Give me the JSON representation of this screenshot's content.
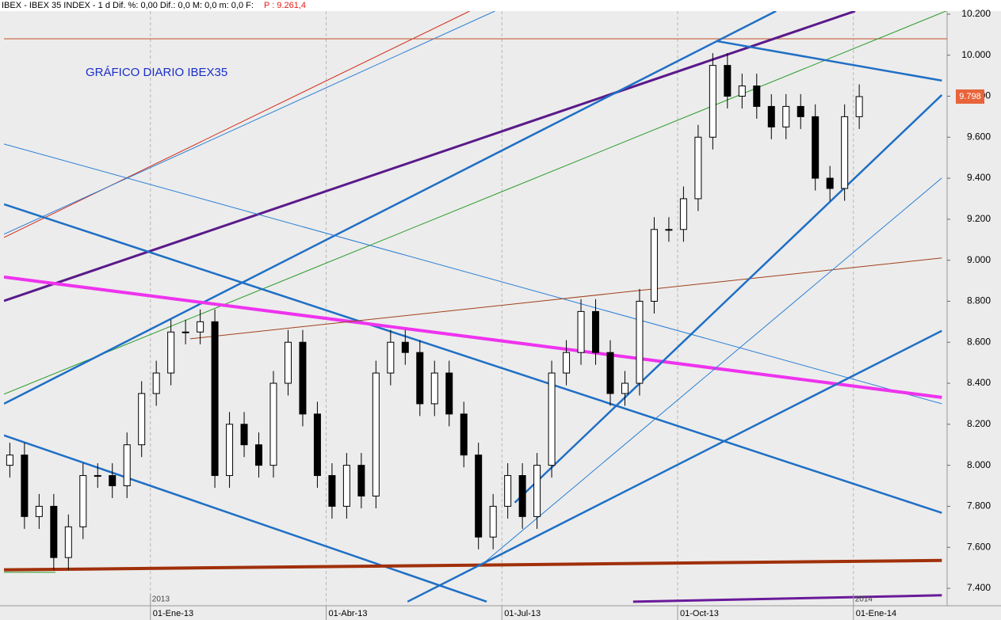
{
  "header": {
    "text": "IBEX - IBEX 35 INDEX - 1 d Dif. %: 0,00 Dif.: 0,0 M: 0,0 m: 0,0 F:",
    "price": "P : 9.261,4"
  },
  "chart_data": {
    "type": "candlestick",
    "title": "GRÁFICO DIARIO IBEX35",
    "xlim": [
      -2.5,
      13.6
    ],
    "ylim": [
      7315,
      10215
    ],
    "xticks": [
      {
        "value": 0,
        "label": "01-Ene-13"
      },
      {
        "value": 3,
        "label": "01-Abr-13"
      },
      {
        "value": 6,
        "label": "01-Jul-13"
      },
      {
        "value": 9,
        "label": "01-Oct-13"
      },
      {
        "value": 12,
        "label": "01-Ene-14"
      }
    ],
    "year_labels": [
      {
        "value": 0,
        "label": "2013"
      },
      {
        "value": 12,
        "label": "2014"
      }
    ],
    "yticks": [
      {
        "value": 7400,
        "label": "7.400"
      },
      {
        "value": 7600,
        "label": "7.600"
      },
      {
        "value": 7800,
        "label": "7.800"
      },
      {
        "value": 8000,
        "label": "8.000"
      },
      {
        "value": 8200,
        "label": "8.200"
      },
      {
        "value": 8400,
        "label": "8.400"
      },
      {
        "value": 8600,
        "label": "8.600"
      },
      {
        "value": 8800,
        "label": "8.800"
      },
      {
        "value": 9000,
        "label": "9.000"
      },
      {
        "value": 9200,
        "label": "9.200"
      },
      {
        "value": 9400,
        "label": "9.400"
      },
      {
        "value": 9600,
        "label": "9.600"
      },
      {
        "value": 9800,
        "label": "9.800"
      },
      {
        "value": 10000,
        "label": "10.000"
      },
      {
        "value": 10200,
        "label": "10.200"
      }
    ],
    "last_price": {
      "value": 9798,
      "label": "9.798"
    },
    "up_color": "#ffffff",
    "down_color": "#000000",
    "x": [
      -2.4,
      -2.15,
      -1.9,
      -1.65,
      -1.4,
      -1.15,
      -0.9,
      -0.65,
      -0.4,
      -0.15,
      0.1,
      0.35,
      0.6,
      0.85,
      1.1,
      1.35,
      1.6,
      1.85,
      2.1,
      2.35,
      2.6,
      2.85,
      3.1,
      3.35,
      3.6,
      3.85,
      4.1,
      4.35,
      4.6,
      4.85,
      5.1,
      5.35,
      5.6,
      5.85,
      6.1,
      6.35,
      6.6,
      6.85,
      7.1,
      7.35,
      7.6,
      7.85,
      8.1,
      8.35,
      8.6,
      8.85,
      9.1,
      9.35,
      9.6,
      9.85,
      10.1,
      10.35,
      10.6,
      10.85,
      11.1,
      11.35,
      11.6,
      11.85,
      12.1
    ],
    "open": [
      8000,
      8050,
      7750,
      7800,
      7550,
      7700,
      7950,
      7950,
      7900,
      8100,
      8350,
      8450,
      8650,
      8650,
      8700,
      7950,
      8200,
      8100,
      8000,
      8400,
      8600,
      8250,
      7950,
      7800,
      8000,
      7850,
      8450,
      8600,
      8550,
      8300,
      8450,
      8250,
      8050,
      7650,
      7800,
      7950,
      7750,
      8000,
      8450,
      8550,
      8750,
      8550,
      8350,
      8400,
      8800,
      9150,
      9150,
      9300,
      9600,
      9950,
      9800,
      9850,
      9750,
      9650,
      9750,
      9700,
      9400,
      9350,
      9700
    ],
    "high": [
      8110,
      8110,
      7860,
      7860,
      7760,
      8010,
      8010,
      8010,
      8160,
      8410,
      8510,
      8710,
      8710,
      8760,
      8760,
      8260,
      8260,
      8160,
      8460,
      8660,
      8660,
      8310,
      8010,
      8060,
      8060,
      8510,
      8660,
      8660,
      8610,
      8510,
      8510,
      8310,
      8110,
      7860,
      8010,
      8010,
      8060,
      8510,
      8610,
      8810,
      8810,
      8610,
      8460,
      8860,
      9210,
      9210,
      9360,
      9660,
      10010,
      10010,
      9910,
      9910,
      9810,
      9810,
      9810,
      9760,
      9460,
      9760,
      9858
    ],
    "low": [
      7940,
      7690,
      7690,
      7490,
      7490,
      7640,
      7890,
      7840,
      7840,
      8040,
      8290,
      8390,
      8590,
      8590,
      7890,
      7890,
      8040,
      7940,
      7940,
      8340,
      8190,
      7890,
      7740,
      7740,
      7790,
      7790,
      8390,
      8490,
      8240,
      8240,
      8190,
      7990,
      7590,
      7590,
      7740,
      7690,
      7690,
      7940,
      8390,
      8490,
      8490,
      8290,
      8290,
      8340,
      8740,
      9090,
      9090,
      9240,
      9540,
      9740,
      9740,
      9690,
      9590,
      9590,
      9640,
      9340,
      9290,
      9290,
      9640
    ],
    "close": [
      8050,
      7750,
      7800,
      7550,
      7700,
      7950,
      7950,
      7900,
      8100,
      8350,
      8450,
      8650,
      8650,
      8700,
      7950,
      8200,
      8100,
      8000,
      8400,
      8600,
      8250,
      7950,
      7800,
      8000,
      7850,
      8450,
      8600,
      8550,
      8300,
      8450,
      8250,
      8050,
      7650,
      7800,
      7950,
      7750,
      8000,
      8450,
      8550,
      8750,
      8550,
      8350,
      8400,
      8800,
      9150,
      9150,
      9300,
      9600,
      9950,
      9800,
      9850,
      9750,
      9650,
      9750,
      9700,
      9400,
      9350,
      9700,
      9798
    ],
    "trendlines": [
      {
        "x": [
          -2.5,
          5.45
        ],
        "y": [
          9111,
          10215
        ],
        "color": "#d42a1a",
        "width": 1
      },
      {
        "x": [
          -2.5,
          5.88
        ],
        "y": [
          9127,
          10215
        ],
        "color": "#2a7fd4",
        "width": 1
      },
      {
        "x": [
          -2.5,
          13.6
        ],
        "y": [
          10080,
          10080
        ],
        "color": "#c0502a",
        "width": 1
      },
      {
        "x": [
          -2.5,
          12.03
        ],
        "y": [
          8802,
          10215
        ],
        "color": "#5a1a8a",
        "width": 3
      },
      {
        "x": [
          -2.5,
          13.58
        ],
        "y": [
          8347,
          10215
        ],
        "color": "#2a9a2a",
        "width": 1
      },
      {
        "x": [
          -2.5,
          10.68
        ],
        "y": [
          8300,
          10215
        ],
        "color": "#1f6fc5",
        "width": 2.5
      },
      {
        "x": [
          -2.5,
          13.51
        ],
        "y": [
          9567,
          8300
        ],
        "color": "#2a7fd4",
        "width": 1
      },
      {
        "x": [
          -2.5,
          13.51
        ],
        "y": [
          9273,
          7768
        ],
        "color": "#1f6fc5",
        "width": 2.5
      },
      {
        "x": [
          -2.5,
          13.51
        ],
        "y": [
          8918,
          8331
        ],
        "color": "#ee33ee",
        "width": 4
      },
      {
        "x": [
          -2.5,
          5.74
        ],
        "y": [
          8146,
          7335
        ],
        "color": "#1f6fc5",
        "width": 2.5
      },
      {
        "x": [
          0.68,
          13.51
        ],
        "y": [
          8617,
          9011
        ],
        "color": "#a0401a",
        "width": 1
      },
      {
        "x": [
          -2.5,
          13.51
        ],
        "y": [
          7490,
          7536
        ],
        "color": "#a0300a",
        "width": 4
      },
      {
        "x": [
          4.39,
          13.51
        ],
        "y": [
          7335,
          8656
        ],
        "color": "#1f6fc5",
        "width": 2.5
      },
      {
        "x": [
          6.22,
          13.51
        ],
        "y": [
          7818,
          9806
        ],
        "color": "#1f6fc5",
        "width": 2.5
      },
      {
        "x": [
          5.68,
          13.51
        ],
        "y": [
          7521,
          9401
        ],
        "color": "#2a7fd4",
        "width": 1
      },
      {
        "x": [
          9.66,
          13.51
        ],
        "y": [
          10069,
          9876
        ],
        "color": "#1f6fc5",
        "width": 2.5
      },
      {
        "x": [
          8.24,
          13.51
        ],
        "y": [
          7335,
          7366
        ],
        "color": "#6a1a9a",
        "width": 3
      },
      {
        "x": [
          -2.5,
          -1.62
        ],
        "y": [
          7478,
          7478
        ],
        "color": "#2a9a2a",
        "width": 1
      }
    ]
  }
}
